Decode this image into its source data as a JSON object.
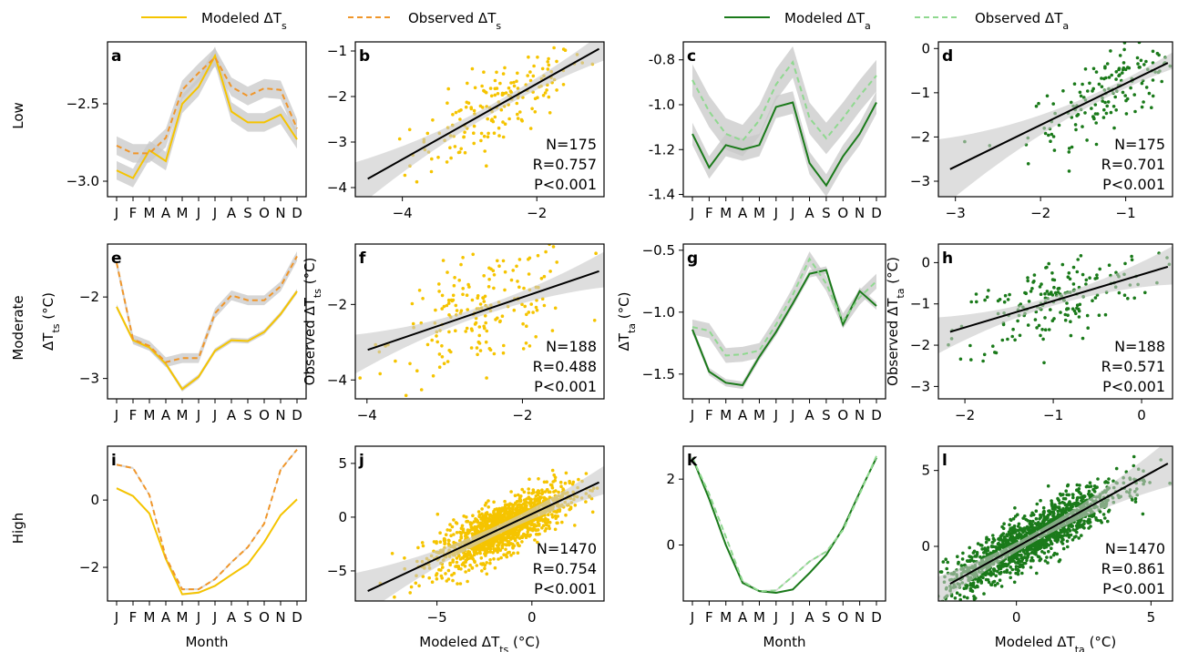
{
  "legend": {
    "items": [
      {
        "label": "Modeled ΔT",
        "sub": "s",
        "color": "#f5c400",
        "dash": false
      },
      {
        "label": "Observed ΔT",
        "sub": "s",
        "color": "#f0962a",
        "dash": true
      },
      {
        "label": "Modeled ΔT",
        "sub": "a",
        "color": "#1a7a1a",
        "dash": false
      },
      {
        "label": "Observed ΔT",
        "sub": "a",
        "color": "#8fd88f",
        "dash": true
      }
    ]
  },
  "row_labels": [
    "Low",
    "Moderate",
    "High"
  ],
  "colors": {
    "ts_modeled": "#f5c400",
    "ts_observed": "#f0962a",
    "ta_modeled": "#1a7a1a",
    "ta_observed": "#8fd88f",
    "band": "#c8c8c8",
    "fit": "#000000"
  },
  "chart_data": [
    {
      "panel": "a",
      "type": "line",
      "kind": "ts",
      "categories": [
        "J",
        "F",
        "M",
        "A",
        "M",
        "J",
        "J",
        "A",
        "S",
        "O",
        "N",
        "D"
      ],
      "ylim": [
        -3.1,
        -2.1
      ],
      "yticks": [
        -3.0,
        -2.5
      ],
      "ytick_labels": [
        "−3.0",
        "−2.5"
      ],
      "series": [
        {
          "name": "Modeled ΔTs",
          "values": [
            -2.93,
            -2.98,
            -2.8,
            -2.87,
            -2.5,
            -2.39,
            -2.19,
            -2.55,
            -2.62,
            -2.62,
            -2.57,
            -2.73
          ],
          "band": 0.06
        },
        {
          "name": "Observed ΔTs",
          "values": [
            -2.77,
            -2.82,
            -2.82,
            -2.72,
            -2.41,
            -2.3,
            -2.2,
            -2.39,
            -2.45,
            -2.4,
            -2.41,
            -2.66
          ],
          "band": 0.06
        }
      ]
    },
    {
      "panel": "b",
      "type": "scatter",
      "kind": "ts",
      "xlim": [
        -4.7,
        -1.0
      ],
      "ylim": [
        -4.2,
        -0.8
      ],
      "xticks": [
        -4,
        -2
      ],
      "xtick_labels": [
        "−4",
        "−2"
      ],
      "yticks": [
        -4,
        -3,
        -2,
        -1
      ],
      "ytick_labels": [
        "−4",
        "−3",
        "−2",
        "−1"
      ],
      "n": 175,
      "fit": [
        0.83,
        -0.06
      ],
      "x_center": -2.55,
      "x_sd": 0.65,
      "noise": 0.45,
      "stats": [
        "N=175",
        "R=0.757",
        "P<0.001"
      ]
    },
    {
      "panel": "c",
      "type": "line",
      "kind": "ta",
      "categories": [
        "J",
        "F",
        "M",
        "A",
        "M",
        "J",
        "J",
        "A",
        "S",
        "O",
        "N",
        "D"
      ],
      "ylim": [
        -1.41,
        -0.72
      ],
      "yticks": [
        -1.4,
        -1.2,
        -1.0,
        -0.8
      ],
      "ytick_labels": [
        "-1.4",
        "-1.2",
        "-1.0",
        "-0.8"
      ],
      "series": [
        {
          "name": "Modeled ΔTa",
          "values": [
            -1.13,
            -1.28,
            -1.18,
            -1.2,
            -1.18,
            -1.01,
            -0.99,
            -1.26,
            -1.36,
            -1.23,
            -1.13,
            -0.99
          ],
          "band": 0.05
        },
        {
          "name": "Observed ΔTa",
          "values": [
            -0.89,
            -1.03,
            -1.13,
            -1.16,
            -1.07,
            -0.91,
            -0.81,
            -1.06,
            -1.15,
            -1.06,
            -0.96,
            -0.87
          ],
          "band": 0.07
        }
      ]
    },
    {
      "panel": "d",
      "type": "scatter",
      "kind": "ta",
      "xlim": [
        -3.2,
        -0.45
      ],
      "ylim": [
        -3.35,
        0.15
      ],
      "xticks": [
        -3,
        -2,
        -1
      ],
      "xtick_labels": [
        "−3",
        "−2",
        "−1"
      ],
      "yticks": [
        -3,
        -2,
        -1,
        0
      ],
      "ytick_labels": [
        "−3",
        "−2",
        "−1",
        "0"
      ],
      "n": 175,
      "fit": [
        0.94,
        0.15
      ],
      "x_center": -1.15,
      "x_sd": 0.5,
      "noise": 0.4,
      "stats": [
        "N=175",
        "R=0.701",
        "P<0.001"
      ]
    },
    {
      "panel": "e",
      "type": "line",
      "kind": "ts",
      "categories": [
        "J",
        "F",
        "M",
        "A",
        "M",
        "J",
        "J",
        "A",
        "S",
        "O",
        "N",
        "D"
      ],
      "ylim": [
        -3.25,
        -1.35
      ],
      "yticks": [
        -3,
        -2
      ],
      "ytick_labels": [
        "−3",
        "−2"
      ],
      "series": [
        {
          "name": "Modeled ΔTs",
          "values": [
            -2.12,
            -2.53,
            -2.62,
            -2.82,
            -3.13,
            -2.98,
            -2.66,
            -2.53,
            -2.54,
            -2.43,
            -2.21,
            -1.93
          ],
          "band": 0.03
        },
        {
          "name": "Observed ΔTs",
          "values": [
            -1.58,
            -2.52,
            -2.6,
            -2.8,
            -2.75,
            -2.75,
            -2.2,
            -1.98,
            -2.04,
            -2.04,
            -1.87,
            -1.5
          ],
          "band": 0.06
        }
      ]
    },
    {
      "panel": "f",
      "type": "scatter",
      "kind": "ts",
      "xlim": [
        -4.15,
        -0.95
      ],
      "ylim": [
        -4.5,
        -0.4
      ],
      "xticks": [
        -4,
        -2
      ],
      "xtick_labels": [
        "−4",
        "−2"
      ],
      "yticks": [
        -4,
        -2
      ],
      "ytick_labels": [
        "−4",
        "−2"
      ],
      "n": 188,
      "fit": [
        0.7,
        -0.41
      ],
      "x_center": -2.5,
      "x_sd": 0.6,
      "noise": 0.75,
      "stats": [
        "N=188",
        "R=0.488",
        "P<0.001"
      ]
    },
    {
      "panel": "g",
      "type": "line",
      "kind": "ta",
      "categories": [
        "J",
        "F",
        "M",
        "A",
        "M",
        "J",
        "J",
        "A",
        "S",
        "O",
        "N",
        "D"
      ],
      "ylim": [
        -1.7,
        -0.45
      ],
      "yticks": [
        -1.5,
        -1.0,
        -0.5
      ],
      "ytick_labels": [
        "−1.5",
        "−1.0",
        "−0.5"
      ],
      "series": [
        {
          "name": "Modeled ΔTa",
          "values": [
            -1.14,
            -1.48,
            -1.57,
            -1.59,
            -1.36,
            -1.16,
            -0.93,
            -0.69,
            -0.66,
            -1.1,
            -0.83,
            -0.95
          ],
          "band": 0.03
        },
        {
          "name": "Observed ΔTa",
          "values": [
            -1.12,
            -1.15,
            -1.35,
            -1.34,
            -1.31,
            -1.1,
            -0.86,
            -0.57,
            -0.77,
            -1.07,
            -0.88,
            -0.75
          ],
          "band": 0.06
        }
      ]
    },
    {
      "panel": "h",
      "type": "scatter",
      "kind": "ta",
      "xlim": [
        -2.3,
        0.35
      ],
      "ylim": [
        -3.3,
        0.45
      ],
      "xticks": [
        -2,
        -1,
        0
      ],
      "xtick_labels": [
        "−2",
        "−1",
        "0"
      ],
      "yticks": [
        -3,
        -2,
        -1,
        0
      ],
      "ytick_labels": [
        "−3",
        "−2",
        "−1",
        "0"
      ],
      "n": 188,
      "fit": [
        0.64,
        -0.29
      ],
      "x_center": -1.0,
      "x_sd": 0.55,
      "noise": 0.5,
      "stats": [
        "N=188",
        "R=0.571",
        "P<0.001"
      ]
    },
    {
      "panel": "i",
      "type": "line",
      "kind": "ts",
      "categories": [
        "J",
        "F",
        "M",
        "A",
        "M",
        "J",
        "J",
        "A",
        "S",
        "O",
        "N",
        "D"
      ],
      "ylim": [
        -3.0,
        1.6
      ],
      "yticks": [
        -2,
        0
      ],
      "ytick_labels": [
        "−2",
        "0"
      ],
      "series": [
        {
          "name": "Modeled ΔTs",
          "values": [
            0.35,
            0.12,
            -0.4,
            -1.75,
            -2.8,
            -2.75,
            -2.55,
            -2.22,
            -1.9,
            -1.25,
            -0.45,
            0.02
          ],
          "band": 0.03
        },
        {
          "name": "Observed ΔTs",
          "values": [
            1.05,
            0.95,
            0.15,
            -1.7,
            -2.65,
            -2.65,
            -2.35,
            -1.85,
            -1.4,
            -0.7,
            0.9,
            1.5
          ],
          "band": 0.03
        }
      ]
    },
    {
      "panel": "j",
      "type": "scatter",
      "kind": "ts",
      "xlim": [
        -9.3,
        3.8
      ],
      "ylim": [
        -7.8,
        6.6
      ],
      "xticks": [
        -5,
        0
      ],
      "xtick_labels": [
        "−5",
        "0"
      ],
      "yticks": [
        -5,
        0,
        5
      ],
      "ytick_labels": [
        "−5",
        "0",
        "5"
      ],
      "n": 1470,
      "fit": [
        0.83,
        0.3
      ],
      "x_center": -1.6,
      "x_sd": 1.7,
      "noise": 1.15,
      "stats": [
        "N=1470",
        "R=0.754",
        "P<0.001"
      ]
    },
    {
      "panel": "k",
      "type": "line",
      "kind": "ta",
      "categories": [
        "J",
        "F",
        "M",
        "A",
        "M",
        "J",
        "J",
        "A",
        "S",
        "O",
        "N",
        "D"
      ],
      "ylim": [
        -1.7,
        3.0
      ],
      "yticks": [
        0,
        2
      ],
      "ytick_labels": [
        "0",
        "2"
      ],
      "series": [
        {
          "name": "Modeled ΔTa",
          "values": [
            2.65,
            1.4,
            0.0,
            -1.15,
            -1.4,
            -1.45,
            -1.35,
            -0.85,
            -0.3,
            0.5,
            1.6,
            2.65
          ],
          "band": 0.03
        },
        {
          "name": "Observed ΔTa",
          "values": [
            2.65,
            1.55,
            0.25,
            -1.1,
            -1.4,
            -1.38,
            -0.95,
            -0.5,
            -0.2,
            0.45,
            1.55,
            2.7
          ],
          "band": 0.03
        }
      ]
    },
    {
      "panel": "l",
      "type": "scatter",
      "kind": "ta",
      "xlim": [
        -2.9,
        5.8
      ],
      "ylim": [
        -3.6,
        6.6
      ],
      "xticks": [
        0,
        5
      ],
      "xtick_labels": [
        "0",
        "5"
      ],
      "yticks": [
        0,
        5
      ],
      "ytick_labels": [
        "0",
        "5"
      ],
      "n": 1470,
      "fit": [
        0.98,
        -0.05
      ],
      "x_center": 0.6,
      "x_sd": 1.6,
      "noise": 0.8,
      "stats": [
        "N=1470",
        "R=0.861",
        "P<0.001"
      ]
    }
  ],
  "axis_labels": {
    "month": "Month",
    "dts": "ΔT",
    "dts_sub": "s",
    "dts_unit": " (°C)",
    "obs": "Observed ΔT",
    "mod": "Modeled ΔT"
  }
}
